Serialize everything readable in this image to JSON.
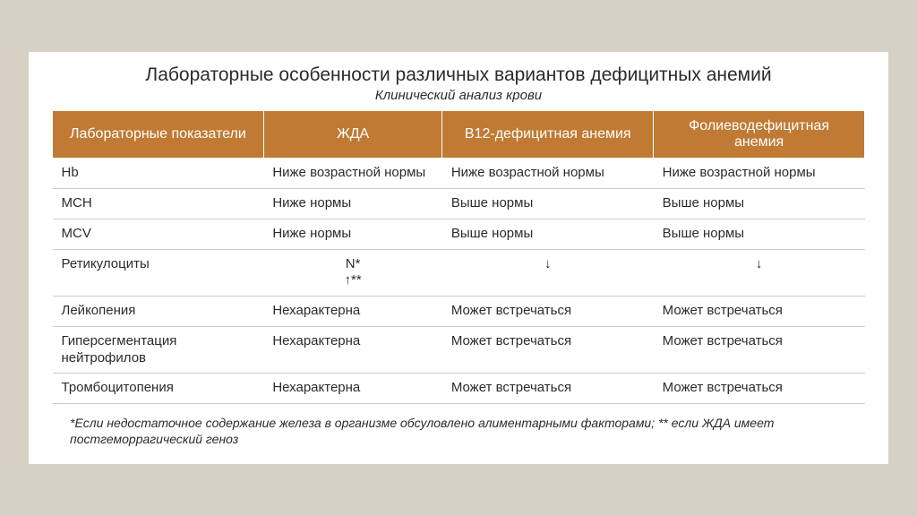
{
  "title": "Лабораторные особенности различных вариантов дефицитных анемий",
  "subtitle": "Клинический анализ крови",
  "table": {
    "headers": [
      "Лабораторные показатели",
      "ЖДА",
      "В12-дефицитная анемия",
      "Фолиеводефицитная анемия"
    ],
    "rows": [
      {
        "label": "Hb",
        "c1": "Ниже возрастной нормы",
        "c2": "Ниже возрастной нормы",
        "c3": "Ниже возрастной нормы"
      },
      {
        "label": "MCH",
        "c1": "Ниже нормы",
        "c2": "Выше нормы",
        "c3": "Выше нормы"
      },
      {
        "label": "MCV",
        "c1": "Ниже нормы",
        "c2": "Выше нормы",
        "c3": "Выше нормы"
      },
      {
        "label": "Ретикулоциты",
        "c1": "N*\n↑**",
        "c2": "↓",
        "c3": "↓",
        "center": true
      },
      {
        "label": "Лейкопения",
        "c1": "Нехарактерна",
        "c2": "Может встречаться",
        "c3": "Может встречаться"
      },
      {
        "label": "Гиперсегментация нейтрофилов",
        "c1": "Нехарактерна",
        "c2": "Может встречаться",
        "c3": "Может встречаться"
      },
      {
        "label": "Тромбоцитопения",
        "c1": "Нехарактерна",
        "c2": "Может встречаться",
        "c3": "Может встречаться"
      }
    ]
  },
  "footnote": "*Если недостаточное содержание железа в организме обсуловлено алиментарными факторами; ** если ЖДА имеет постгеморрагический геноз",
  "colors": {
    "header_bg": "#c07a33",
    "header_text": "#ffffff",
    "body_text": "#2b2b2b",
    "row_border": "#d0ccc2",
    "page_bg": "#d6d1c4",
    "slide_bg": "#ffffff"
  }
}
